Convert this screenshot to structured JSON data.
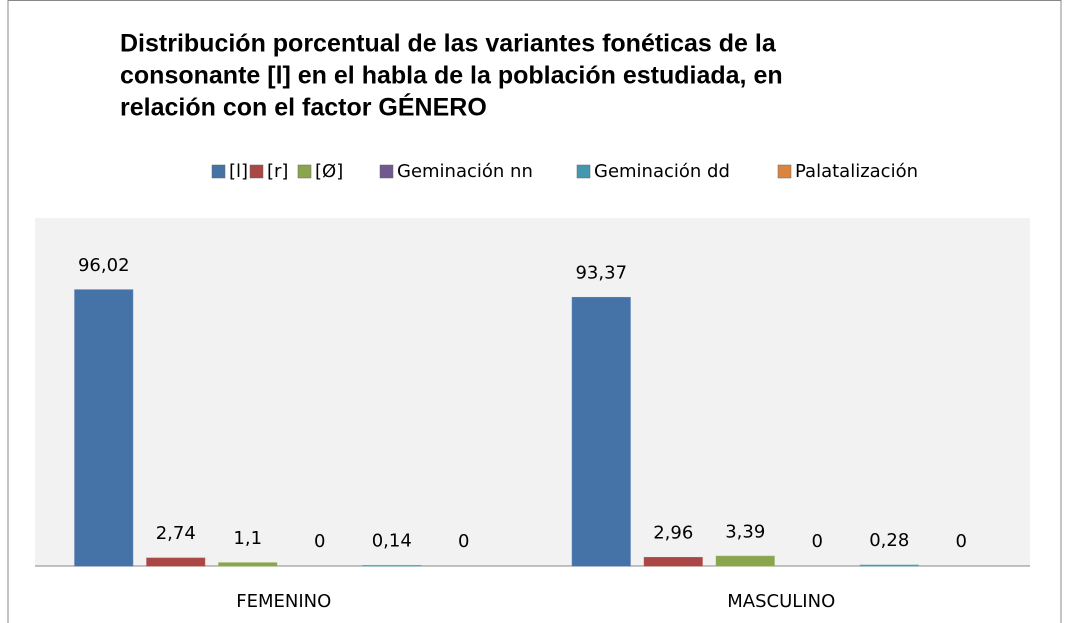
{
  "chart_data": {
    "type": "bar",
    "title": "Distribución porcentual de las variantes fonéticas de la consonante [l] en el habla de la población estudiada, en relación con el factor GÉNERO",
    "title_lines": [
      "Distribución porcentual de las variantes fonéticas de la",
      "consonante [l] en el habla de la población estudiada, en",
      "relación con el factor GÉNERO"
    ],
    "categories": [
      "FEMENINO",
      "MASCULINO"
    ],
    "series": [
      {
        "name": "[l]",
        "color": "#4572a7",
        "values": [
          96.02,
          93.37
        ],
        "value_labels": [
          "96,02",
          "93,37"
        ]
      },
      {
        "name": "[r]",
        "color": "#aa4643",
        "values": [
          2.74,
          2.96
        ],
        "value_labels": [
          "2,74",
          "2,96"
        ]
      },
      {
        "name": "[Ø]",
        "color": "#89a54e",
        "values": [
          1.1,
          3.39
        ],
        "value_labels": [
          "1,1",
          "3,39"
        ]
      },
      {
        "name": "Geminación nn",
        "color": "#71588f",
        "values": [
          0,
          0
        ],
        "value_labels": [
          "0",
          "0"
        ]
      },
      {
        "name": "Geminación dd",
        "color": "#4198af",
        "values": [
          0.14,
          0.28
        ],
        "value_labels": [
          "0,14",
          "0,28"
        ]
      },
      {
        "name": "Palatalización",
        "color": "#db843d",
        "values": [
          0,
          0
        ],
        "value_labels": [
          "0",
          "0"
        ]
      }
    ],
    "ylim": [
      0,
      121
    ],
    "legend": "top"
  }
}
